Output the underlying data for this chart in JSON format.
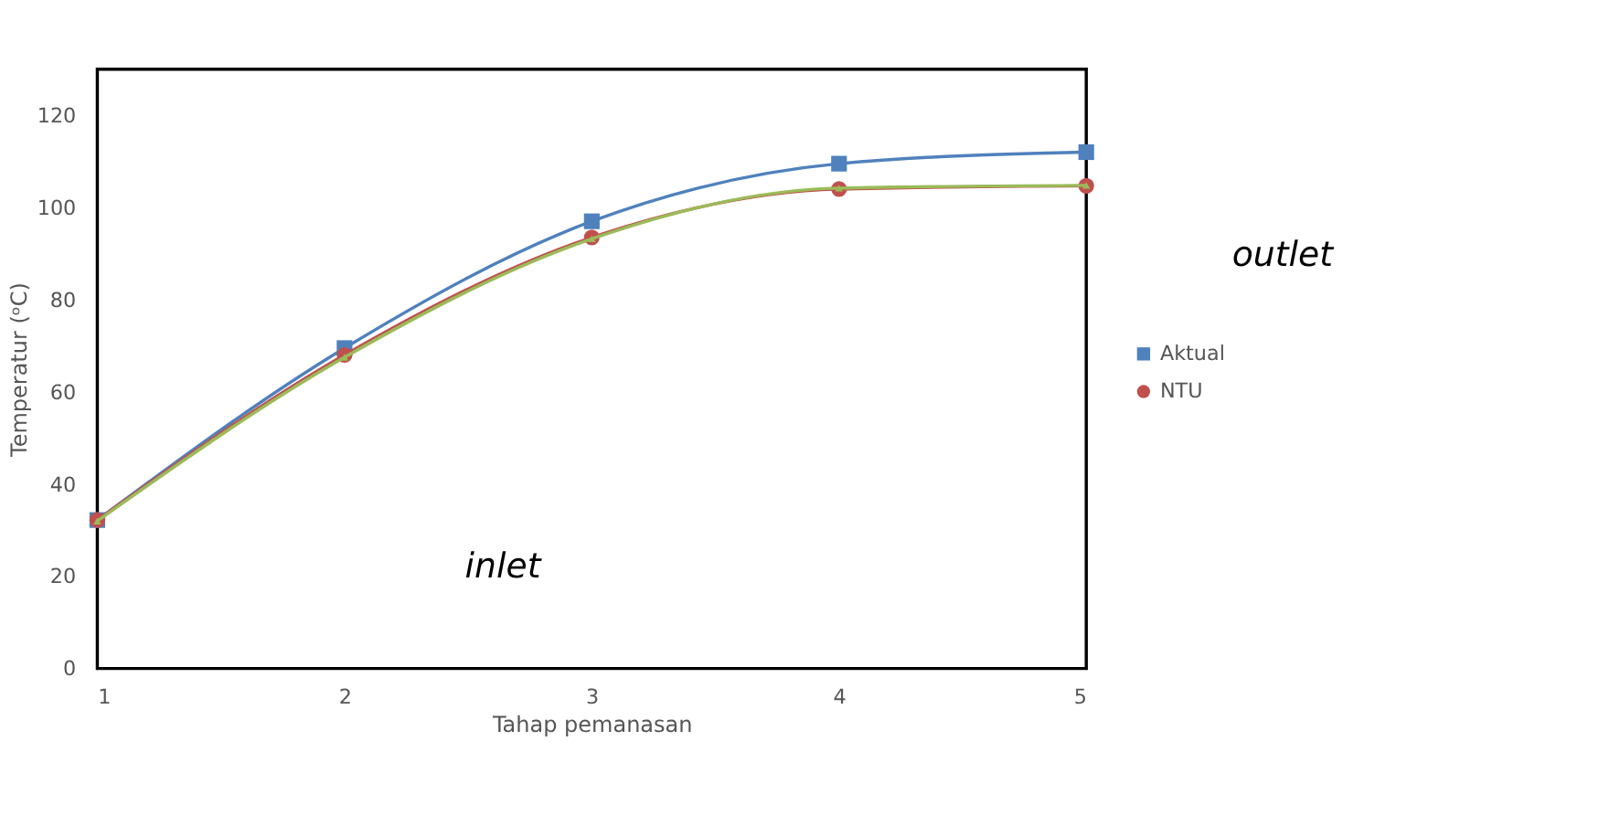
{
  "chart_data": {
    "type": "line",
    "xlabel": "Tahap pemanasan",
    "ylabel": "Temperatur (ᵒC)",
    "x": [
      1,
      2,
      3,
      4,
      5
    ],
    "series": [
      {
        "name": "Aktual",
        "color": "#4f81bd",
        "marker": "square",
        "values": [
          32.2,
          69.5,
          97,
          109.5,
          112
        ]
      },
      {
        "name": "NTU",
        "color": "#c0504d",
        "marker": "circle",
        "values": [
          32.2,
          68,
          93.5,
          104,
          104.7
        ]
      },
      {
        "color": "#9bbb59",
        "marker": "triangle",
        "values": [
          32,
          67.5,
          93.2,
          104.2,
          104.8
        ]
      }
    ],
    "xlim": [
      1,
      5
    ],
    "xticks": [
      1,
      2,
      3,
      4,
      5
    ],
    "ylim": [
      0,
      130
    ],
    "yticks": [
      0,
      20,
      40,
      60,
      80,
      100,
      120
    ],
    "grid": false,
    "legend": "right",
    "line_style": "solid",
    "annotations": [
      "inlet",
      "outlet"
    ]
  }
}
